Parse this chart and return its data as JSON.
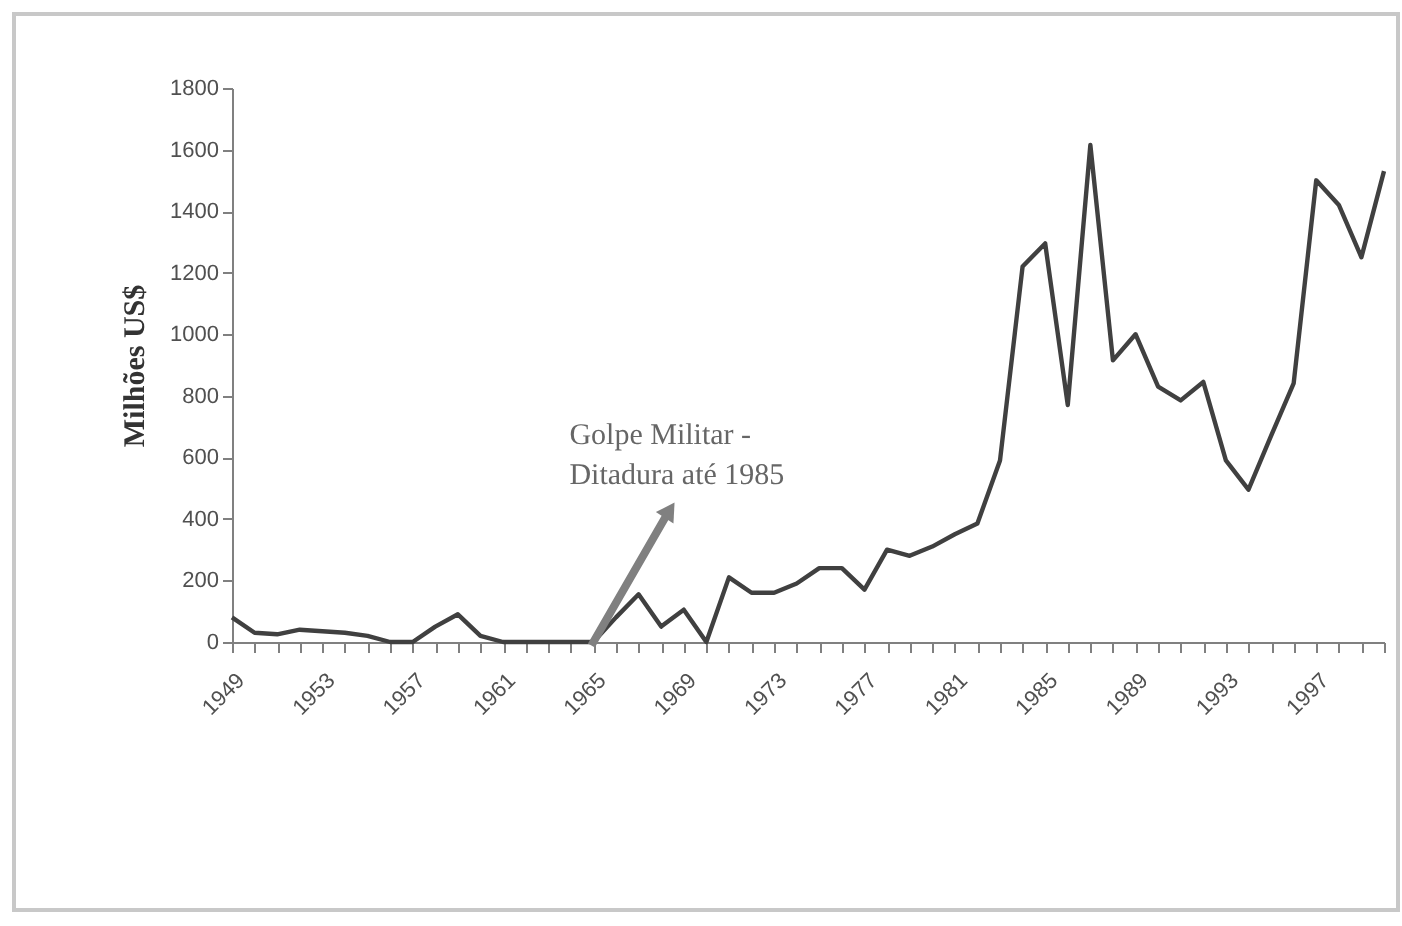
{
  "chart_data": {
    "type": "line",
    "ylabel": "Milhões US$",
    "annotations": [
      {
        "text": "Golpe Militar - Ditadura até 1985",
        "x": 1965,
        "y": 0
      }
    ],
    "x": [
      1949,
      1950,
      1951,
      1952,
      1953,
      1954,
      1955,
      1956,
      1957,
      1958,
      1959,
      1960,
      1961,
      1962,
      1963,
      1964,
      1965,
      1966,
      1967,
      1968,
      1969,
      1970,
      1971,
      1972,
      1973,
      1974,
      1975,
      1976,
      1977,
      1978,
      1979,
      1980,
      1981,
      1982,
      1983,
      1984,
      1985,
      1986,
      1987,
      1988,
      1989,
      1990,
      1991,
      1992,
      1993,
      1994,
      1995,
      1996,
      1997,
      1998,
      1999,
      2000
    ],
    "series": [
      {
        "color": "#404040",
        "values": [
          80,
          30,
          25,
          40,
          35,
          30,
          20,
          0,
          0,
          50,
          90,
          20,
          0,
          0,
          0,
          0,
          0,
          80,
          155,
          50,
          105,
          0,
          210,
          160,
          160,
          190,
          240,
          240,
          170,
          300,
          280,
          310,
          350,
          385,
          590,
          1220,
          1295,
          770,
          1615,
          915,
          1000,
          830,
          785,
          845,
          590,
          495,
          670,
          840,
          1500,
          1420,
          1250,
          1530
        ]
      }
    ],
    "xlim": [
      1949,
      2000
    ],
    "xticks": [
      {
        "value": 1949,
        "label": "1949"
      },
      {
        "value": 1950,
        "label": null
      },
      {
        "value": 1951,
        "label": null
      },
      {
        "value": 1952,
        "label": null
      },
      {
        "value": 1953,
        "label": "1953"
      },
      {
        "value": 1954,
        "label": null
      },
      {
        "value": 1955,
        "label": null
      },
      {
        "value": 1956,
        "label": null
      },
      {
        "value": 1957,
        "label": "1957"
      },
      {
        "value": 1958,
        "label": null
      },
      {
        "value": 1959,
        "label": null
      },
      {
        "value": 1960,
        "label": null
      },
      {
        "value": 1961,
        "label": "1961"
      },
      {
        "value": 1962,
        "label": null
      },
      {
        "value": 1963,
        "label": null
      },
      {
        "value": 1964,
        "label": null
      },
      {
        "value": 1965,
        "label": "1965"
      },
      {
        "value": 1966,
        "label": null
      },
      {
        "value": 1967,
        "label": null
      },
      {
        "value": 1968,
        "label": null
      },
      {
        "value": 1969,
        "label": "1969"
      },
      {
        "value": 1970,
        "label": null
      },
      {
        "value": 1971,
        "label": null
      },
      {
        "value": 1972,
        "label": null
      },
      {
        "value": 1973,
        "label": "1973"
      },
      {
        "value": 1974,
        "label": null
      },
      {
        "value": 1975,
        "label": null
      },
      {
        "value": 1976,
        "label": null
      },
      {
        "value": 1977,
        "label": "1977"
      },
      {
        "value": 1978,
        "label": null
      },
      {
        "value": 1979,
        "label": null
      },
      {
        "value": 1980,
        "label": null
      },
      {
        "value": 1981,
        "label": "1981"
      },
      {
        "value": 1982,
        "label": null
      },
      {
        "value": 1983,
        "label": null
      },
      {
        "value": 1984,
        "label": null
      },
      {
        "value": 1985,
        "label": "1985"
      },
      {
        "value": 1986,
        "label": null
      },
      {
        "value": 1987,
        "label": null
      },
      {
        "value": 1988,
        "label": null
      },
      {
        "value": 1989,
        "label": "1989"
      },
      {
        "value": 1990,
        "label": null
      },
      {
        "value": 1991,
        "label": null
      },
      {
        "value": 1992,
        "label": null
      },
      {
        "value": 1993,
        "label": "1993"
      },
      {
        "value": 1994,
        "label": null
      },
      {
        "value": 1995,
        "label": null
      },
      {
        "value": 1996,
        "label": null
      },
      {
        "value": 1997,
        "label": "1997"
      },
      {
        "value": 1998,
        "label": null
      },
      {
        "value": 1999,
        "label": null
      },
      {
        "value": 2000,
        "label": null
      }
    ],
    "ylim": [
      0,
      1800
    ],
    "yticks": [
      0,
      200,
      400,
      600,
      800,
      1000,
      1200,
      1400,
      1600,
      1800
    ],
    "grid": false,
    "marker": "none",
    "line_style": "solid"
  }
}
